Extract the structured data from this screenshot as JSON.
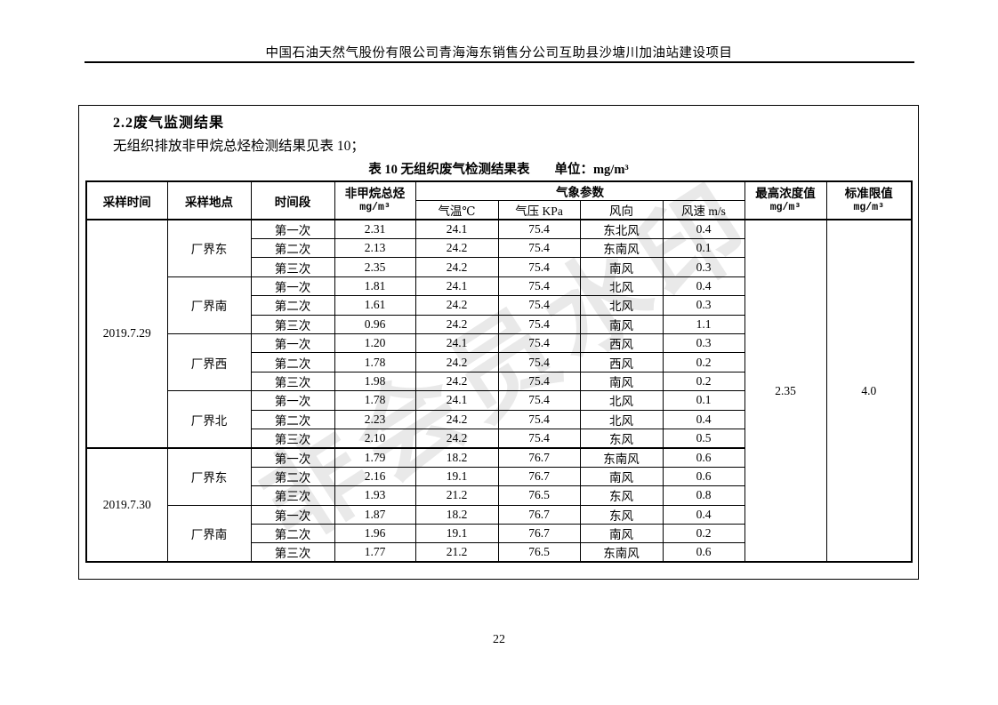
{
  "page": {
    "header_title": "中国石油天然气股份有限公司青海海东销售分公司互助县沙塘川加油站建设项目",
    "watermark": "非会员水印",
    "page_number": "22"
  },
  "section": {
    "heading": "2.2废气监测结果",
    "intro": "无组织排放非甲烷总烃检测结果见表 10；",
    "caption": "表 10  无组织废气检测结果表",
    "caption_unit": "单位：mg/m³"
  },
  "table": {
    "headers": {
      "sample_time": "采样时间",
      "sample_location": "采样地点",
      "period": "时间段",
      "nmhc_title": "非甲烷总烃",
      "nmhc_unit": "mg/m³",
      "weather_group": "气象参数",
      "temp": "气温℃",
      "pressure": "气压 KPa",
      "wind_dir": "风向",
      "wind_speed": "风速 m/s",
      "max_title": "最高浓度值",
      "max_unit": "mg/m³",
      "limit_title": "标准限值",
      "limit_unit": "mg/m³"
    },
    "max_value": "2.35",
    "limit_value": "4.0",
    "groups": [
      {
        "date": "2019.7.29",
        "locations": [
          {
            "name": "厂界东",
            "rows": [
              {
                "period": "第一次",
                "nmhc": "2.31",
                "temp": "24.1",
                "pressure": "75.4",
                "wind_dir": "东北风",
                "wind_speed": "0.4"
              },
              {
                "period": "第二次",
                "nmhc": "2.13",
                "temp": "24.2",
                "pressure": "75.4",
                "wind_dir": "东南风",
                "wind_speed": "0.1"
              },
              {
                "period": "第三次",
                "nmhc": "2.35",
                "temp": "24.2",
                "pressure": "75.4",
                "wind_dir": "南风",
                "wind_speed": "0.3"
              }
            ]
          },
          {
            "name": "厂界南",
            "rows": [
              {
                "period": "第一次",
                "nmhc": "1.81",
                "temp": "24.1",
                "pressure": "75.4",
                "wind_dir": "北风",
                "wind_speed": "0.4"
              },
              {
                "period": "第二次",
                "nmhc": "1.61",
                "temp": "24.2",
                "pressure": "75.4",
                "wind_dir": "北风",
                "wind_speed": "0.3"
              },
              {
                "period": "第三次",
                "nmhc": "0.96",
                "temp": "24.2",
                "pressure": "75.4",
                "wind_dir": "南风",
                "wind_speed": "1.1"
              }
            ]
          },
          {
            "name": "厂界西",
            "rows": [
              {
                "period": "第一次",
                "nmhc": "1.20",
                "temp": "24.1",
                "pressure": "75.4",
                "wind_dir": "西风",
                "wind_speed": "0.3"
              },
              {
                "period": "第二次",
                "nmhc": "1.78",
                "temp": "24.2",
                "pressure": "75.4",
                "wind_dir": "西风",
                "wind_speed": "0.2"
              },
              {
                "period": "第三次",
                "nmhc": "1.98",
                "temp": "24.2",
                "pressure": "75.4",
                "wind_dir": "南风",
                "wind_speed": "0.2"
              }
            ]
          },
          {
            "name": "厂界北",
            "rows": [
              {
                "period": "第一次",
                "nmhc": "1.78",
                "temp": "24.1",
                "pressure": "75.4",
                "wind_dir": "北风",
                "wind_speed": "0.1"
              },
              {
                "period": "第二次",
                "nmhc": "2.23",
                "temp": "24.2",
                "pressure": "75.4",
                "wind_dir": "北风",
                "wind_speed": "0.4"
              },
              {
                "period": "第三次",
                "nmhc": "2.10",
                "temp": "24.2",
                "pressure": "75.4",
                "wind_dir": "东风",
                "wind_speed": "0.5"
              }
            ]
          }
        ]
      },
      {
        "date": "2019.7.30",
        "locations": [
          {
            "name": "厂界东",
            "rows": [
              {
                "period": "第一次",
                "nmhc": "1.79",
                "temp": "18.2",
                "pressure": "76.7",
                "wind_dir": "东南风",
                "wind_speed": "0.6"
              },
              {
                "period": "第二次",
                "nmhc": "2.16",
                "temp": "19.1",
                "pressure": "76.7",
                "wind_dir": "南风",
                "wind_speed": "0.6"
              },
              {
                "period": "第三次",
                "nmhc": "1.93",
                "temp": "21.2",
                "pressure": "76.5",
                "wind_dir": "东风",
                "wind_speed": "0.8"
              }
            ]
          },
          {
            "name": "厂界南",
            "rows": [
              {
                "period": "第一次",
                "nmhc": "1.87",
                "temp": "18.2",
                "pressure": "76.7",
                "wind_dir": "东风",
                "wind_speed": "0.4"
              },
              {
                "period": "第二次",
                "nmhc": "1.96",
                "temp": "19.1",
                "pressure": "76.7",
                "wind_dir": "南风",
                "wind_speed": "0.2"
              },
              {
                "period": "第三次",
                "nmhc": "1.77",
                "temp": "21.2",
                "pressure": "76.5",
                "wind_dir": "东南风",
                "wind_speed": "0.6"
              }
            ]
          }
        ]
      }
    ]
  }
}
